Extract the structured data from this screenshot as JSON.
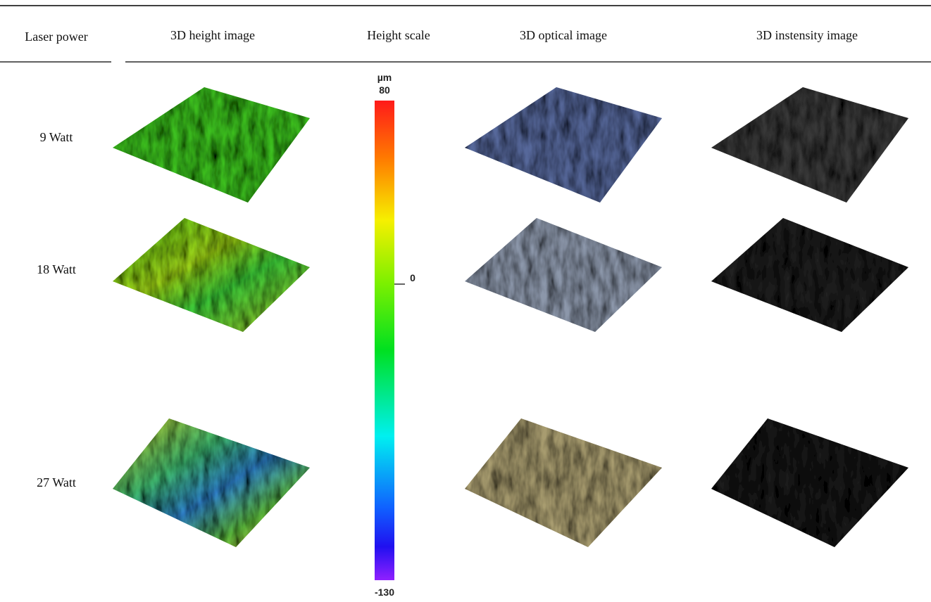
{
  "table": {
    "header": [
      "Laser power",
      "3D height image",
      "Height scale",
      "3D optical image",
      "3D instensity image"
    ],
    "rows": [
      [
        "9 Watt"
      ],
      [
        "18 Watt"
      ],
      [
        "27 Watt"
      ]
    ]
  },
  "height_scale": {
    "unit": "µm",
    "max": 80,
    "zero": 0,
    "min": -130
  }
}
